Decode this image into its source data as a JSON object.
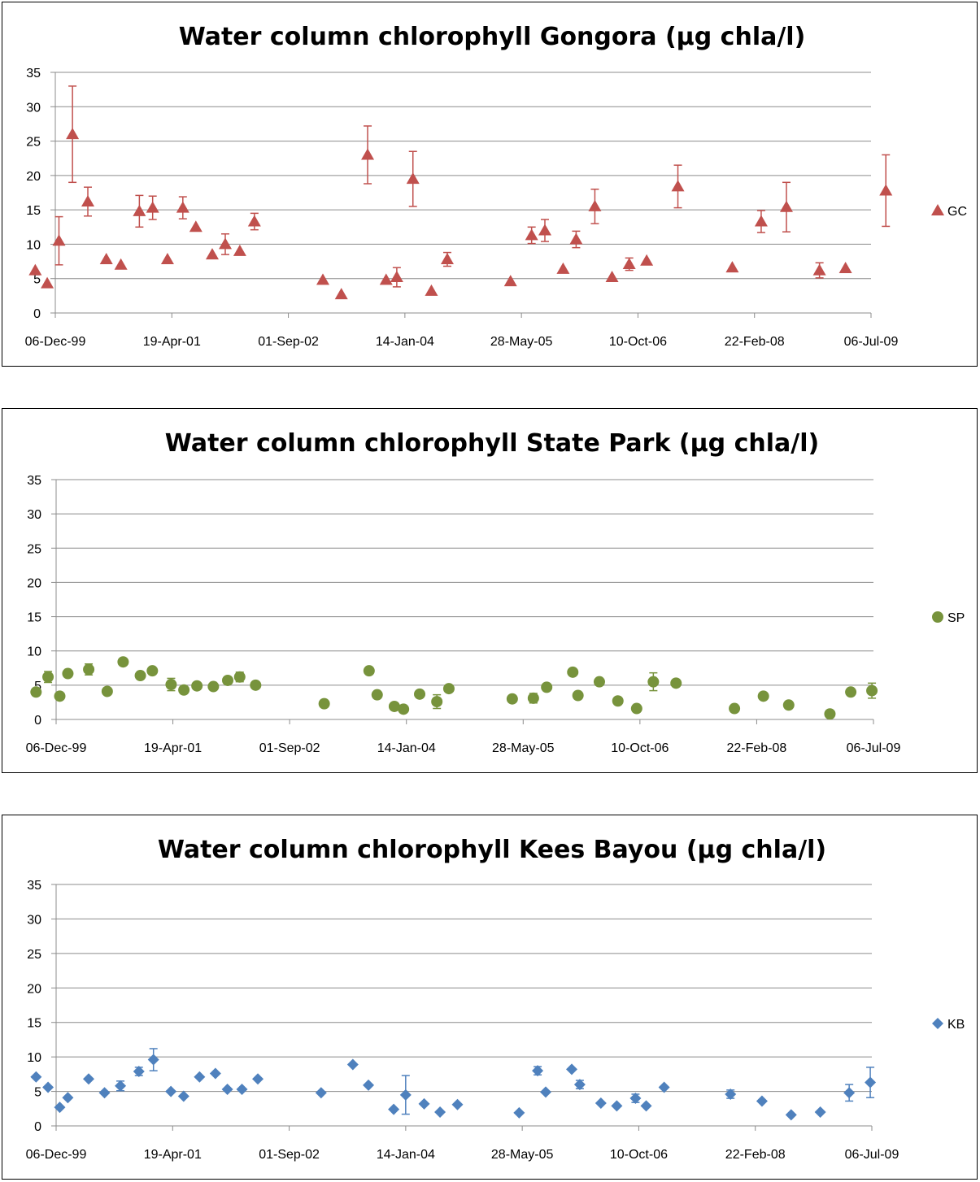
{
  "chart_data": [
    {
      "type": "scatter",
      "title": "Water column chlorophyll Gongora (µg chla/l)",
      "xlabel": "",
      "ylabel": "",
      "ylim": [
        0,
        35
      ],
      "y_ticks": [
        "0",
        "5",
        "10",
        "15",
        "20",
        "25",
        "30",
        "35"
      ],
      "x_range": [
        "2000-12-06",
        "2009-07-06"
      ],
      "x_ticks": [
        "06-Dec-99",
        "19-Apr-01",
        "01-Sep-02",
        "14-Jan-04",
        "28-May-05",
        "10-Oct-06",
        "22-Feb-08",
        "06-Jul-09"
      ],
      "grid": true,
      "legend_position": "right",
      "series": [
        {
          "name": "GC",
          "marker": "triangle",
          "color": "#C0504D",
          "points": [
            {
              "x": "2000-09-20",
              "y": 6.2
            },
            {
              "x": "2000-11-05",
              "y": 4.3
            },
            {
              "x": "2000-12-20",
              "y": 10.5,
              "err": 3.5
            },
            {
              "x": "2001-02-10",
              "y": 26.0,
              "err": 7.0
            },
            {
              "x": "2001-04-10",
              "y": 16.2,
              "err": 2.1
            },
            {
              "x": "2001-06-20",
              "y": 7.8
            },
            {
              "x": "2001-08-15",
              "y": 7.0
            },
            {
              "x": "2001-10-25",
              "y": 14.8,
              "err": 2.3
            },
            {
              "x": "2001-12-15",
              "y": 15.3,
              "err": 1.7
            },
            {
              "x": "2002-02-10",
              "y": 7.8
            },
            {
              "x": "2002-04-10",
              "y": 15.3,
              "err": 1.6
            },
            {
              "x": "2002-05-30",
              "y": 12.5
            },
            {
              "x": "2002-08-01",
              "y": 8.5
            },
            {
              "x": "2002-09-20",
              "y": 10.0,
              "err": 1.5
            },
            {
              "x": "2002-11-15",
              "y": 9.0
            },
            {
              "x": "2003-01-10",
              "y": 13.3,
              "err": 1.2
            },
            {
              "x": "2003-09-30",
              "y": 4.8
            },
            {
              "x": "2003-12-10",
              "y": 2.7
            },
            {
              "x": "2004-03-20",
              "y": 23.0,
              "err": 4.2
            },
            {
              "x": "2004-05-30",
              "y": 4.8
            },
            {
              "x": "2004-07-10",
              "y": 5.2,
              "err": 1.4
            },
            {
              "x": "2004-09-10",
              "y": 19.5,
              "err": 4.0
            },
            {
              "x": "2004-11-20",
              "y": 3.2
            },
            {
              "x": "2005-01-20",
              "y": 7.8,
              "err": 1.0
            },
            {
              "x": "2005-09-20",
              "y": 4.6
            },
            {
              "x": "2005-12-10",
              "y": 11.3,
              "err": 1.2
            },
            {
              "x": "2006-01-30",
              "y": 12.0,
              "err": 1.6
            },
            {
              "x": "2006-04-10",
              "y": 6.4
            },
            {
              "x": "2006-05-30",
              "y": 10.7,
              "err": 1.2
            },
            {
              "x": "2006-08-10",
              "y": 15.5,
              "err": 2.5
            },
            {
              "x": "2006-10-15",
              "y": 5.2
            },
            {
              "x": "2006-12-20",
              "y": 7.1,
              "err": 0.9
            },
            {
              "x": "2007-02-25",
              "y": 7.6
            },
            {
              "x": "2007-06-25",
              "y": 18.4,
              "err": 3.1
            },
            {
              "x": "2008-01-20",
              "y": 6.6
            },
            {
              "x": "2008-05-10",
              "y": 13.3,
              "err": 1.6
            },
            {
              "x": "2008-08-15",
              "y": 15.4,
              "err": 3.6
            },
            {
              "x": "2008-12-20",
              "y": 6.2,
              "err": 1.1
            },
            {
              "x": "2009-03-30",
              "y": 6.5
            },
            {
              "x": "2009-09-01",
              "y": 17.8,
              "err": 5.2
            }
          ]
        }
      ]
    },
    {
      "type": "scatter",
      "title": "Water column chlorophyll State Park (µg chla/l)",
      "xlabel": "",
      "ylabel": "",
      "ylim": [
        0,
        35
      ],
      "y_ticks": [
        "0",
        "5",
        "10",
        "15",
        "20",
        "25",
        "30",
        "35"
      ],
      "x_range": [
        "2000-12-06",
        "2009-07-06"
      ],
      "x_ticks": [
        "06-Dec-99",
        "19-Apr-01",
        "01-Sep-02",
        "14-Jan-04",
        "28-May-05",
        "10-Oct-06",
        "22-Feb-08",
        "06-Jul-09"
      ],
      "grid": true,
      "legend_position": "right",
      "series": [
        {
          "name": "SP",
          "marker": "circle",
          "color": "#77933C",
          "points": [
            {
              "x": "2000-09-20",
              "y": 4.0
            },
            {
              "x": "2000-11-05",
              "y": 6.2,
              "err": 0.8
            },
            {
              "x": "2000-12-20",
              "y": 3.4
            },
            {
              "x": "2001-01-20",
              "y": 6.7
            },
            {
              "x": "2001-04-10",
              "y": 7.3,
              "err": 0.8
            },
            {
              "x": "2001-06-20",
              "y": 4.1
            },
            {
              "x": "2001-08-20",
              "y": 8.4
            },
            {
              "x": "2001-10-25",
              "y": 6.4
            },
            {
              "x": "2001-12-10",
              "y": 7.1
            },
            {
              "x": "2002-02-20",
              "y": 5.1,
              "err": 0.9
            },
            {
              "x": "2002-04-10",
              "y": 4.3
            },
            {
              "x": "2002-05-30",
              "y": 4.9
            },
            {
              "x": "2002-08-01",
              "y": 4.8
            },
            {
              "x": "2002-09-25",
              "y": 5.7
            },
            {
              "x": "2002-11-10",
              "y": 6.2,
              "err": 0.7
            },
            {
              "x": "2003-01-10",
              "y": 5.0
            },
            {
              "x": "2003-09-30",
              "y": 2.3
            },
            {
              "x": "2004-03-20",
              "y": 7.1
            },
            {
              "x": "2004-04-20",
              "y": 3.6
            },
            {
              "x": "2004-06-25",
              "y": 1.9
            },
            {
              "x": "2004-07-30",
              "y": 1.5
            },
            {
              "x": "2004-09-30",
              "y": 3.7
            },
            {
              "x": "2004-12-05",
              "y": 2.6,
              "err": 1.0
            },
            {
              "x": "2005-01-20",
              "y": 4.5
            },
            {
              "x": "2005-09-20",
              "y": 3.0
            },
            {
              "x": "2005-12-10",
              "y": 3.1,
              "err": 0.7
            },
            {
              "x": "2006-01-30",
              "y": 4.7
            },
            {
              "x": "2006-05-10",
              "y": 6.9
            },
            {
              "x": "2006-05-30",
              "y": 3.5
            },
            {
              "x": "2006-08-20",
              "y": 5.5
            },
            {
              "x": "2006-10-30",
              "y": 2.7
            },
            {
              "x": "2007-01-10",
              "y": 1.6
            },
            {
              "x": "2007-03-15",
              "y": 5.5,
              "err": 1.3
            },
            {
              "x": "2007-06-10",
              "y": 5.3
            },
            {
              "x": "2008-01-20",
              "y": 1.6
            },
            {
              "x": "2008-05-10",
              "y": 3.4
            },
            {
              "x": "2008-08-15",
              "y": 2.1
            },
            {
              "x": "2009-01-20",
              "y": 0.8
            },
            {
              "x": "2009-04-10",
              "y": 4.0
            },
            {
              "x": "2009-06-30",
              "y": 4.2,
              "err": 1.1
            }
          ]
        }
      ]
    },
    {
      "type": "scatter",
      "title": "Water column chlorophyll Kees Bayou (µg chla/l)",
      "xlabel": "",
      "ylabel": "",
      "ylim": [
        0,
        35
      ],
      "y_ticks": [
        "0",
        "5",
        "10",
        "15",
        "20",
        "25",
        "30",
        "35"
      ],
      "x_range": [
        "2000-12-06",
        "2009-07-06"
      ],
      "x_ticks": [
        "06-Dec-99",
        "19-Apr-01",
        "01-Sep-02",
        "14-Jan-04",
        "28-May-05",
        "10-Oct-06",
        "22-Feb-08",
        "06-Jul-09"
      ],
      "grid": true,
      "legend_position": "right",
      "series": [
        {
          "name": "KB",
          "marker": "diamond",
          "color": "#4F81BD",
          "points": [
            {
              "x": "2000-09-20",
              "y": 7.1
            },
            {
              "x": "2000-11-05",
              "y": 5.6
            },
            {
              "x": "2000-12-20",
              "y": 2.7
            },
            {
              "x": "2001-01-20",
              "y": 4.1
            },
            {
              "x": "2001-04-10",
              "y": 6.8
            },
            {
              "x": "2001-06-10",
              "y": 4.8
            },
            {
              "x": "2001-08-10",
              "y": 5.8,
              "err": 0.7
            },
            {
              "x": "2001-10-20",
              "y": 7.9,
              "err": 0.6
            },
            {
              "x": "2001-12-15",
              "y": 9.6,
              "err": 1.6
            },
            {
              "x": "2002-02-20",
              "y": 5.0
            },
            {
              "x": "2002-04-10",
              "y": 4.3
            },
            {
              "x": "2002-06-10",
              "y": 7.1
            },
            {
              "x": "2002-08-10",
              "y": 7.6
            },
            {
              "x": "2002-09-25",
              "y": 5.3
            },
            {
              "x": "2002-11-20",
              "y": 5.3
            },
            {
              "x": "2003-01-20",
              "y": 6.8
            },
            {
              "x": "2003-09-20",
              "y": 4.8
            },
            {
              "x": "2004-01-20",
              "y": 8.9
            },
            {
              "x": "2004-03-20",
              "y": 5.9
            },
            {
              "x": "2004-06-25",
              "y": 2.4
            },
            {
              "x": "2004-08-10",
              "y": 4.5,
              "err": 2.8
            },
            {
              "x": "2004-10-20",
              "y": 3.2
            },
            {
              "x": "2004-12-20",
              "y": 2.0
            },
            {
              "x": "2005-02-25",
              "y": 3.1
            },
            {
              "x": "2005-10-20",
              "y": 1.9
            },
            {
              "x": "2005-12-30",
              "y": 8.0,
              "err": 0.6
            },
            {
              "x": "2006-01-30",
              "y": 4.9
            },
            {
              "x": "2006-05-10",
              "y": 8.2
            },
            {
              "x": "2006-06-10",
              "y": 6.0,
              "err": 0.6
            },
            {
              "x": "2006-08-30",
              "y": 3.3
            },
            {
              "x": "2006-10-30",
              "y": 2.9
            },
            {
              "x": "2007-01-10",
              "y": 4.0,
              "err": 0.6
            },
            {
              "x": "2007-02-20",
              "y": 2.9
            },
            {
              "x": "2007-04-30",
              "y": 5.6
            },
            {
              "x": "2008-01-10",
              "y": 4.6,
              "err": 0.6
            },
            {
              "x": "2008-05-10",
              "y": 3.6
            },
            {
              "x": "2008-08-30",
              "y": 1.6
            },
            {
              "x": "2008-12-20",
              "y": 2.0
            },
            {
              "x": "2009-04-10",
              "y": 4.8,
              "err": 1.2
            },
            {
              "x": "2009-06-30",
              "y": 6.3,
              "err": 2.2
            }
          ]
        }
      ]
    }
  ]
}
